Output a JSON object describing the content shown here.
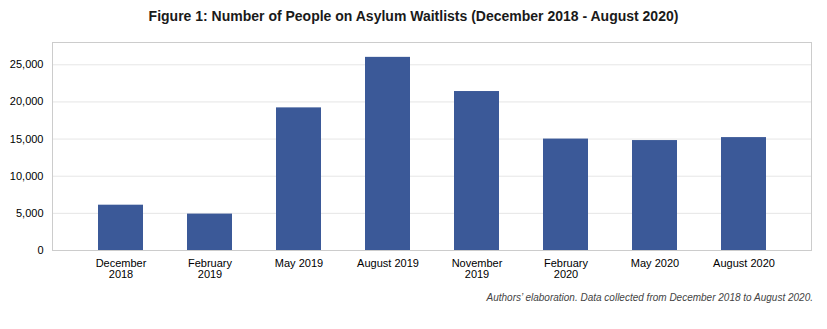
{
  "chart_data": {
    "type": "bar",
    "title": "Figure 1: Number of People on Asylum Waitlists (December 2018 - August 2020)",
    "categories": [
      "December\n2018",
      "February\n2019",
      "May 2019",
      "August 2019",
      "November\n2019",
      "February\n2020",
      "May 2020",
      "August 2020"
    ],
    "values": [
      6100,
      4900,
      19200,
      26000,
      21400,
      15000,
      14800,
      15200
    ],
    "color": "#3B5998",
    "ylim": [
      0,
      28000
    ],
    "yticks": [
      0,
      {
        "value": 5000,
        "label": "5,000"
      },
      {
        "value": 10000,
        "label": "10,000"
      },
      {
        "value": 15000,
        "label": "15,000"
      },
      {
        "value": 20000,
        "label": "20,000"
      },
      {
        "value": 25000,
        "label": "25,000"
      }
    ],
    "grid": true,
    "footnote": "Authors’ elaboration. Data collected from December 2018 to August 2020."
  }
}
